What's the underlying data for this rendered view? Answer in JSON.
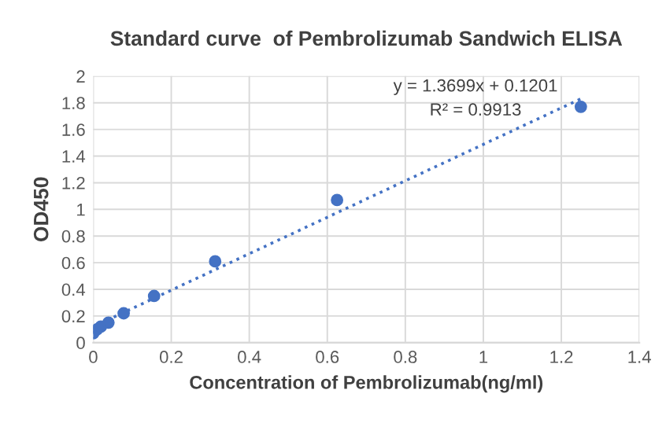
{
  "chart_data": {
    "type": "scatter",
    "title": "Standard curve  of Pembrolizumab Sandwich ELISA",
    "xlabel": "Concentration of Pembrolizumab(ng/ml)",
    "ylabel": "OD450",
    "series": [
      {
        "color": "#4472c4",
        "marker": "circle",
        "x": [
          0,
          0.0098,
          0.0195,
          0.039,
          0.078,
          0.156,
          0.3125,
          0.625,
          1.25
        ],
        "values": [
          0.07,
          0.1,
          0.12,
          0.15,
          0.22,
          0.35,
          0.61,
          1.07,
          1.77
        ]
      },
      {
        "type": "line",
        "color": "#4472c4",
        "line_style": "dotted",
        "x": [
          0,
          1.25
        ],
        "values": [
          0.12,
          1.83
        ]
      }
    ],
    "annotations": [
      "y = 1.3699x + 0.1201",
      "R² = 0.9913"
    ],
    "xlim": [
      0,
      1.4
    ],
    "xticks": [
      0,
      0.2,
      0.4,
      0.6,
      0.8,
      1,
      1.2,
      1.4
    ],
    "ylim": [
      0,
      2
    ],
    "yticks": [
      0,
      0.2,
      0.4,
      0.6,
      0.8,
      1,
      1.2,
      1.4,
      1.6,
      1.8,
      2
    ],
    "grid": true,
    "legend": false
  }
}
